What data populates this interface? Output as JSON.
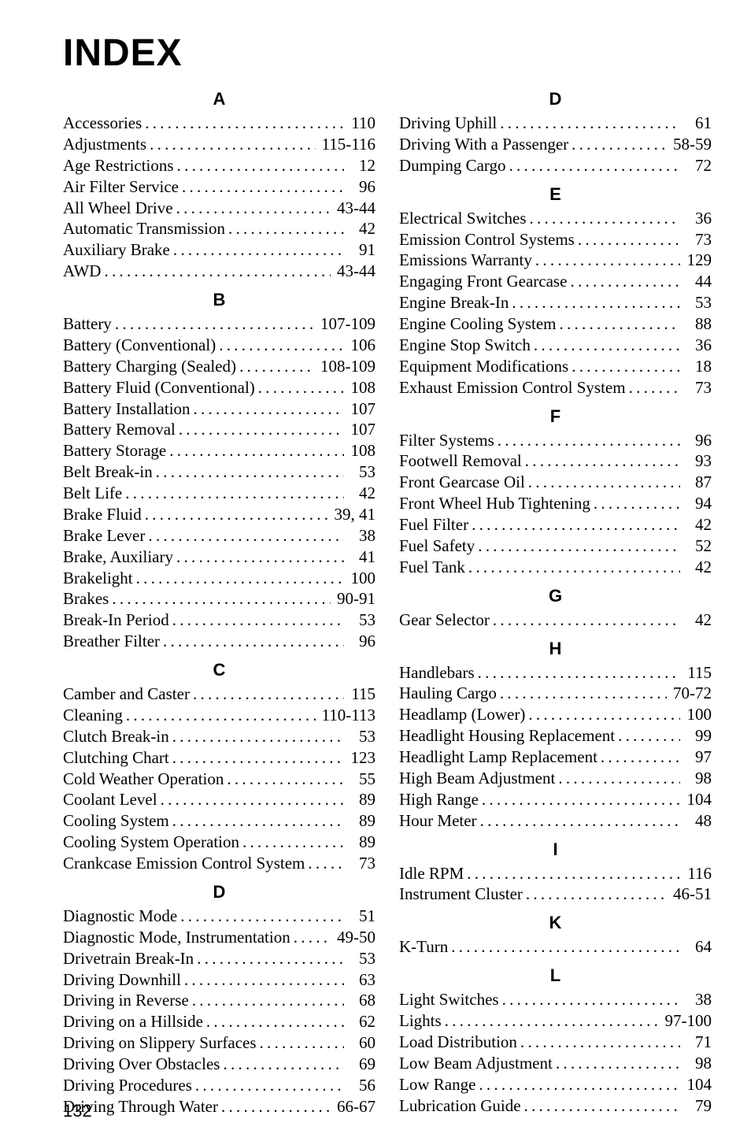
{
  "title": "INDEX",
  "page_number": "132",
  "left_sections": [
    {
      "head": "A",
      "items": [
        {
          "label": "Accessories",
          "page": "110"
        },
        {
          "label": "Adjustments",
          "page": "115-116"
        },
        {
          "label": "Age Restrictions",
          "page": "12"
        },
        {
          "label": "Air Filter Service",
          "page": "96"
        },
        {
          "label": "All Wheel Drive",
          "page": "43-44"
        },
        {
          "label": "Automatic Transmission",
          "page": "42"
        },
        {
          "label": "Auxiliary Brake",
          "page": "91"
        },
        {
          "label": "AWD",
          "page": "43-44"
        }
      ]
    },
    {
      "head": "B",
      "items": [
        {
          "label": "Battery",
          "page": "107-109"
        },
        {
          "label": "Battery (Conventional)",
          "page": "106"
        },
        {
          "label": "Battery Charging (Sealed)",
          "page": "108-109"
        },
        {
          "label": "Battery Fluid (Conventional)",
          "page": "108"
        },
        {
          "label": "Battery Installation",
          "page": "107"
        },
        {
          "label": "Battery Removal",
          "page": "107"
        },
        {
          "label": "Battery Storage",
          "page": "108"
        },
        {
          "label": "Belt Break-in",
          "page": "53"
        },
        {
          "label": "Belt Life",
          "page": "42"
        },
        {
          "label": "Brake Fluid",
          "page": "39, 41"
        },
        {
          "label": "Brake Lever",
          "page": "38"
        },
        {
          "label": "Brake, Auxiliary",
          "page": "41"
        },
        {
          "label": "Brakelight",
          "page": "100"
        },
        {
          "label": "Brakes",
          "page": "90-91"
        },
        {
          "label": "Break-In Period",
          "page": "53"
        },
        {
          "label": "Breather Filter",
          "page": "96"
        }
      ]
    },
    {
      "head": "C",
      "items": [
        {
          "label": "Camber and Caster",
          "page": "115"
        },
        {
          "label": "Cleaning",
          "page": "110-113"
        },
        {
          "label": "Clutch Break-in",
          "page": "53"
        },
        {
          "label": "Clutching Chart",
          "page": "123"
        },
        {
          "label": "Cold Weather Operation",
          "page": "55"
        },
        {
          "label": "Coolant Level",
          "page": "89"
        },
        {
          "label": "Cooling System",
          "page": "89"
        },
        {
          "label": "Cooling System Operation",
          "page": "89"
        },
        {
          "label": "Crankcase Emission Control System",
          "page": "73"
        }
      ]
    },
    {
      "head": "D",
      "items": [
        {
          "label": "Diagnostic Mode",
          "page": "51"
        },
        {
          "label": "Diagnostic Mode, Instrumentation",
          "page": "49-50"
        },
        {
          "label": "Drivetrain Break-In",
          "page": "53"
        },
        {
          "label": "Driving Downhill",
          "page": "63"
        },
        {
          "label": "Driving in Reverse",
          "page": "68"
        },
        {
          "label": "Driving on a Hillside",
          "page": "62"
        },
        {
          "label": "Driving on Slippery Surfaces",
          "page": "60"
        },
        {
          "label": "Driving Over Obstacles",
          "page": "69"
        },
        {
          "label": "Driving Procedures",
          "page": "56"
        },
        {
          "label": "Driving Through Water",
          "page": "66-67"
        }
      ]
    }
  ],
  "right_sections": [
    {
      "head": "D",
      "items": [
        {
          "label": "Driving Uphill",
          "page": "61"
        },
        {
          "label": "Driving With a Passenger",
          "page": "58-59"
        },
        {
          "label": "Dumping Cargo",
          "page": "72"
        }
      ]
    },
    {
      "head": "E",
      "items": [
        {
          "label": "Electrical Switches",
          "page": "36"
        },
        {
          "label": "Emission Control Systems",
          "page": "73"
        },
        {
          "label": "Emissions Warranty",
          "page": "129"
        },
        {
          "label": "Engaging Front Gearcase",
          "page": "44"
        },
        {
          "label": "Engine Break-In",
          "page": "53"
        },
        {
          "label": "Engine Cooling System",
          "page": "88"
        },
        {
          "label": "Engine Stop Switch",
          "page": "36"
        },
        {
          "label": "Equipment Modifications",
          "page": "18"
        },
        {
          "label": "Exhaust Emission Control System",
          "page": "73"
        }
      ]
    },
    {
      "head": "F",
      "items": [
        {
          "label": "Filter Systems",
          "page": "96"
        },
        {
          "label": "Footwell Removal",
          "page": "93"
        },
        {
          "label": "Front Gearcase Oil",
          "page": "87"
        },
        {
          "label": "Front Wheel Hub Tightening",
          "page": "94"
        },
        {
          "label": "Fuel Filter",
          "page": "42"
        },
        {
          "label": "Fuel Safety",
          "page": "52"
        },
        {
          "label": "Fuel Tank",
          "page": "42"
        }
      ]
    },
    {
      "head": "G",
      "items": [
        {
          "label": "Gear Selector",
          "page": "42"
        }
      ]
    },
    {
      "head": "H",
      "items": [
        {
          "label": "Handlebars",
          "page": "115"
        },
        {
          "label": "Hauling Cargo",
          "page": "70-72"
        },
        {
          "label": "Headlamp (Lower)",
          "page": "100"
        },
        {
          "label": "Headlight Housing Replacement",
          "page": "99"
        },
        {
          "label": "Headlight Lamp Replacement",
          "page": "97"
        },
        {
          "label": "High Beam Adjustment",
          "page": "98"
        },
        {
          "label": "High Range",
          "page": "104"
        },
        {
          "label": "Hour Meter",
          "page": "48"
        }
      ]
    },
    {
      "head": "I",
      "items": [
        {
          "label": "Idle RPM",
          "page": "116"
        },
        {
          "label": "Instrument Cluster",
          "page": "46-51"
        }
      ]
    },
    {
      "head": "K",
      "items": [
        {
          "label": "K-Turn",
          "page": "64"
        }
      ]
    },
    {
      "head": "L",
      "items": [
        {
          "label": "Light Switches",
          "page": "38"
        },
        {
          "label": "Lights",
          "page": "97-100"
        },
        {
          "label": "Load Distribution",
          "page": "71"
        },
        {
          "label": "Low Beam Adjustment",
          "page": "98"
        },
        {
          "label": "Low Range",
          "page": "104"
        },
        {
          "label": "Lubrication Guide",
          "page": "79"
        }
      ]
    }
  ]
}
